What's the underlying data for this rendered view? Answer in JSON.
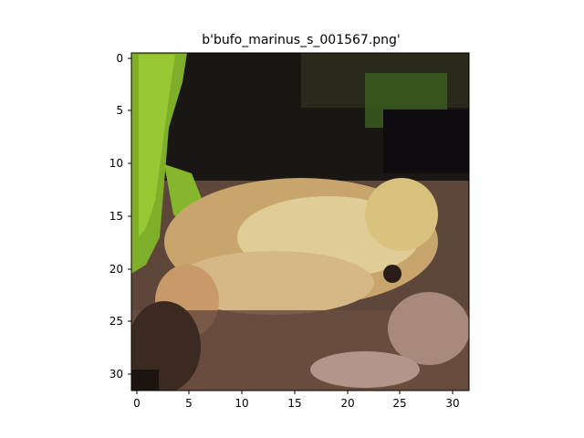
{
  "figure": {
    "title": "b'bufo_marinus_s_001567.png'"
  },
  "image": {
    "subject": "cane toad (Bufo marinus) among green leaves and dark foliage on brown ground",
    "grid_size": 32
  },
  "axes": {
    "x_ticks": [
      "0",
      "5",
      "10",
      "15",
      "20",
      "25",
      "30"
    ],
    "y_ticks": [
      "0",
      "5",
      "10",
      "15",
      "20",
      "25",
      "30"
    ],
    "x_range": [
      -0.5,
      31.5
    ],
    "y_range": [
      -0.5,
      31.5
    ],
    "y_inverted": true
  },
  "palette": {
    "leaf_green": "#8fbf2a",
    "leaf_dark": "#4a6a1c",
    "shadow": "#120e0e",
    "toad_tan": "#cfae74",
    "toad_light": "#e8d8a4",
    "ground_brown": "#6e5040",
    "pebble_pink": "#b89a8c"
  }
}
